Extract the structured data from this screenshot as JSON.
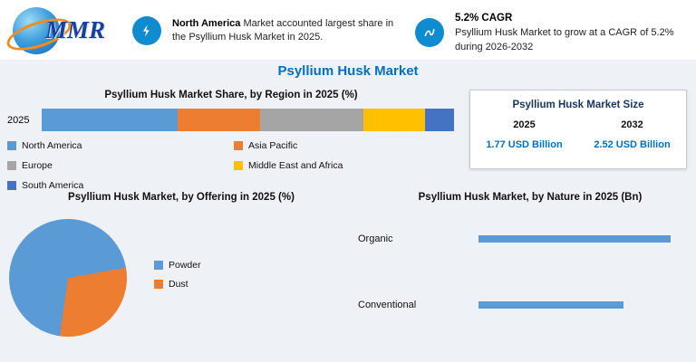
{
  "logo": {
    "text": "MMR"
  },
  "banners": [
    {
      "bold": "North America",
      "text": " Market accounted largest share in the Psyllium Husk Market in 2025."
    },
    {
      "headline": "5.2% CAGR",
      "text": "Psyllium Husk Market to grow at a CAGR of 5.2% during 2026-2032"
    }
  ],
  "title": "Psyllium Husk Market",
  "region_section": {
    "heading": "Psyllium Husk Market Share, by Region in 2025 (%)"
  },
  "market_size_box": {
    "title": "Psyllium Husk Market Size",
    "col1_year": "2025",
    "col2_year": "2032",
    "col1_value": "1.77 USD Billion",
    "col2_value": "2.52 USD Billion"
  },
  "offering_section": {
    "heading": "Psyllium Husk Market, by Offering in 2025 (%)"
  },
  "nature_section": {
    "heading": "Psyllium Husk Market, by Nature in 2025 (Bn)"
  },
  "colors": {
    "accent_blue": "#0070c0",
    "icon_blue": "#0f8bcf"
  },
  "chart_data": [
    {
      "type": "bar",
      "subtype": "stacked-horizontal",
      "title": "Psyllium Husk Market Share, by Region in 2025 (%)",
      "row_label": "2025",
      "categories": [
        "North America",
        "Asia Pacific",
        "Europe",
        "Middle East and Africa",
        "South America"
      ],
      "values": [
        33,
        20,
        25,
        15,
        7
      ],
      "colors": [
        "#5b9bd5",
        "#ed7d31",
        "#a5a5a5",
        "#ffc000",
        "#4472c4"
      ],
      "unit": "%",
      "xlim": [
        0,
        100
      ],
      "legend_position": "below"
    },
    {
      "type": "pie",
      "title": "Psyllium Husk Market, by Offering in 2025 (%)",
      "categories": [
        "Powder",
        "Dust"
      ],
      "values": [
        70,
        30
      ],
      "colors": [
        "#5b9bd5",
        "#ed7d31"
      ],
      "unit": "%",
      "legend_position": "right"
    },
    {
      "type": "bar",
      "subtype": "horizontal",
      "title": "Psyllium Husk Market, by Nature in 2025 (Bn)",
      "categories": [
        "Organic",
        "Conventional"
      ],
      "values": [
        1.01,
        0.76
      ],
      "color": "#5b9bd5",
      "unit": "USD Bn",
      "axis_labels_visible": false
    }
  ]
}
